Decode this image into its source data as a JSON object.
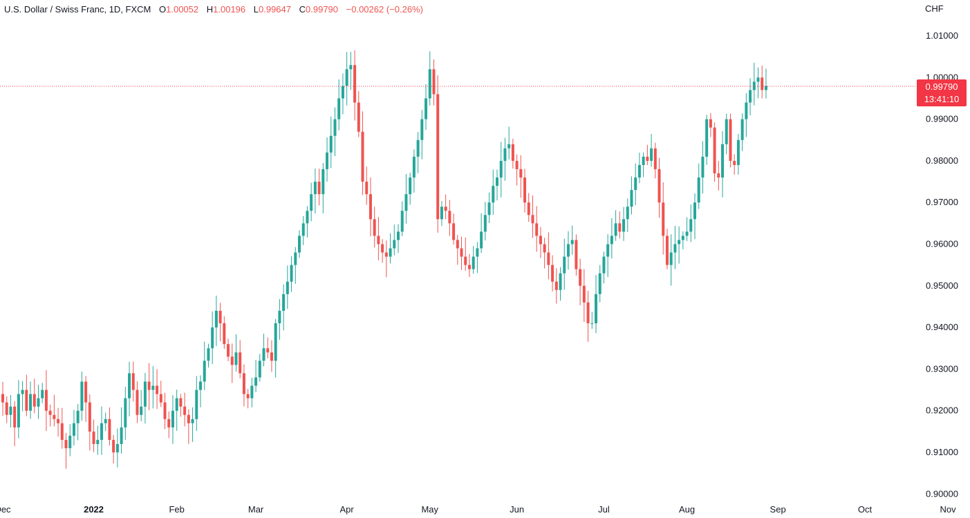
{
  "legend": {
    "symbol": "U.S. Dollar / Swiss Franc, 1D, FXCM",
    "open_label": "O",
    "open": "1.00052",
    "high_label": "H",
    "high": "1.00196",
    "low_label": "L",
    "low": "0.99647",
    "close_label": "C",
    "close": "0.99790",
    "change": "−0.00262 (−0.26%)"
  },
  "axis": {
    "currency": "CHF"
  },
  "last_price": {
    "price": "0.99790",
    "countdown": "13:41:10"
  },
  "colors": {
    "up": "#26a69a",
    "down": "#ef5350",
    "price_line": "#f23645",
    "tag": "#f23645"
  },
  "chart_data": {
    "type": "candlestick",
    "title": "U.S. Dollar / Swiss Franc, 1D, FXCM",
    "ylabel": "CHF",
    "ylim": [
      0.9,
      1.015
    ],
    "grid": false,
    "yticks": [
      "1.01000",
      "1.00000",
      "0.99000",
      "0.98000",
      "0.97000",
      "0.96000",
      "0.95000",
      "0.94000",
      "0.93000",
      "0.92000",
      "0.91000",
      "0.90000"
    ],
    "xticks": [
      {
        "label": "Dec",
        "date": "2021-12-01",
        "bold": false
      },
      {
        "label": "2022",
        "date": "2022-01-03",
        "bold": true
      },
      {
        "label": "Feb",
        "date": "2022-02-01",
        "bold": false
      },
      {
        "label": "Mar",
        "date": "2022-03-01",
        "bold": false
      },
      {
        "label": "Apr",
        "date": "2022-04-01",
        "bold": false
      },
      {
        "label": "May",
        "date": "2022-05-02",
        "bold": false
      },
      {
        "label": "Jun",
        "date": "2022-06-01",
        "bold": false
      },
      {
        "label": "Jul",
        "date": "2022-07-01",
        "bold": false
      },
      {
        "label": "Aug",
        "date": "2022-08-01",
        "bold": false
      },
      {
        "label": "Sep",
        "date": "2022-09-01",
        "bold": false
      },
      {
        "label": "Oct",
        "date": "2022-10-03",
        "bold": false
      },
      {
        "label": "Nov",
        "date": "2022-11-01",
        "bold": false
      }
    ],
    "last_price": 0.9979,
    "close_series_start": "2021-12-01",
    "closes": [
      0.922,
      0.919,
      0.921,
      0.916,
      0.924,
      0.925,
      0.92,
      0.924,
      0.921,
      0.923,
      0.925,
      0.92,
      0.919,
      0.918,
      0.917,
      0.913,
      0.911,
      0.914,
      0.917,
      0.92,
      0.927,
      0.922,
      0.915,
      0.912,
      0.913,
      0.917,
      0.918,
      0.913,
      0.91,
      0.912,
      0.916,
      0.923,
      0.929,
      0.925,
      0.919,
      0.921,
      0.927,
      0.925,
      0.926,
      0.924,
      0.922,
      0.918,
      0.916,
      0.92,
      0.923,
      0.921,
      0.919,
      0.917,
      0.918,
      0.925,
      0.927,
      0.932,
      0.935,
      0.94,
      0.944,
      0.941,
      0.936,
      0.933,
      0.931,
      0.934,
      0.929,
      0.924,
      0.923,
      0.926,
      0.928,
      0.932,
      0.935,
      0.934,
      0.932,
      0.941,
      0.944,
      0.948,
      0.951,
      0.955,
      0.958,
      0.962,
      0.965,
      0.968,
      0.972,
      0.975,
      0.972,
      0.978,
      0.982,
      0.986,
      0.99,
      0.995,
      0.998,
      1.002,
      1.003,
      0.994,
      0.987,
      0.975,
      0.972,
      0.966,
      0.962,
      0.96,
      0.958,
      0.957,
      0.959,
      0.961,
      0.963,
      0.968,
      0.972,
      0.976,
      0.981,
      0.985,
      0.99,
      0.995,
      1.002,
      0.996,
      0.966,
      0.969,
      0.968,
      0.965,
      0.961,
      0.959,
      0.957,
      0.955,
      0.954,
      0.957,
      0.959,
      0.963,
      0.967,
      0.97,
      0.974,
      0.976,
      0.98,
      0.983,
      0.984,
      0.98,
      0.978,
      0.976,
      0.97,
      0.967,
      0.965,
      0.962,
      0.96,
      0.958,
      0.955,
      0.951,
      0.949,
      0.953,
      0.957,
      0.96,
      0.961,
      0.954,
      0.95,
      0.946,
      0.941,
      0.941,
      0.948,
      0.953,
      0.957,
      0.96,
      0.962,
      0.965,
      0.963,
      0.966,
      0.969,
      0.973,
      0.976,
      0.979,
      0.981,
      0.98,
      0.983,
      0.978,
      0.97,
      0.962,
      0.955,
      0.958,
      0.96,
      0.961,
      0.962,
      0.963,
      0.966,
      0.97,
      0.976,
      0.981,
      0.99,
      0.988,
      0.977,
      0.976,
      0.984,
      0.99,
      0.98,
      0.979,
      0.985,
      0.99,
      0.994,
      0.997,
      0.999,
      1.0,
      0.997,
      0.998
    ]
  }
}
